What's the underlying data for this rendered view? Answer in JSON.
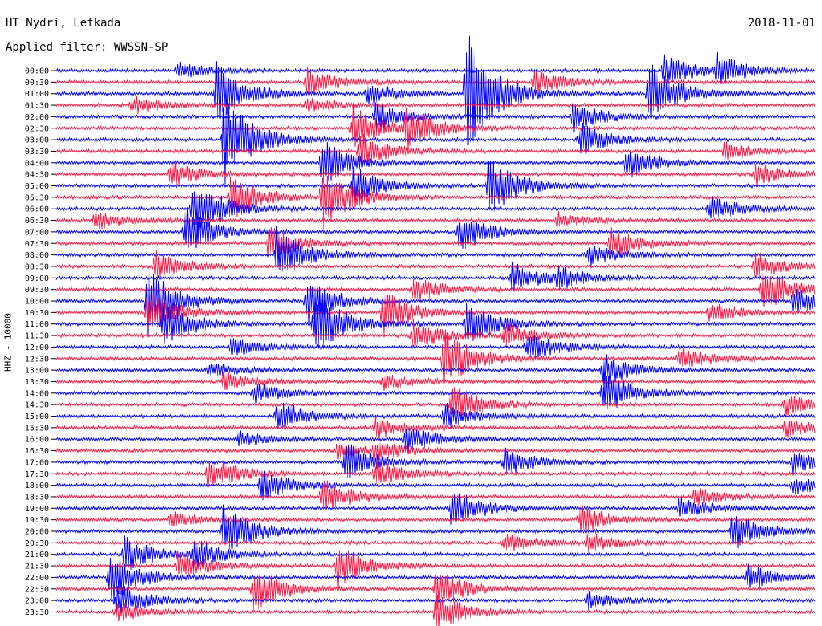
{
  "header": {
    "station": "HT Nydri, Lefkada",
    "filter": "Applied filter: WWSSN-SP",
    "date": "2018-11-01"
  },
  "channel_label": "HHZ - 10000",
  "colors": {
    "even": "#0000ff",
    "odd": "#ff1744",
    "text": "#000000"
  },
  "chart_data": {
    "type": "line",
    "title": "HT Nydri, Lefkada",
    "subtitle": "Applied filter: WWSSN-SP",
    "ylabel": "HHZ - 10000",
    "row_labels": [
      "00:00",
      "00:30",
      "01:00",
      "01:30",
      "02:00",
      "02:30",
      "03:00",
      "03:30",
      "04:00",
      "04:30",
      "05:00",
      "05:30",
      "06:00",
      "06:30",
      "07:00",
      "07:30",
      "08:00",
      "08:30",
      "09:00",
      "09:30",
      "10:00",
      "10:30",
      "11:00",
      "11:30",
      "12:00",
      "12:30",
      "13:00",
      "13:30",
      "14:00",
      "14:30",
      "15:00",
      "15:30",
      "16:00",
      "16:30",
      "17:00",
      "17:30",
      "18:00",
      "18:30",
      "19:00",
      "19:30",
      "20:00",
      "20:30",
      "21:00",
      "21:30",
      "22:00",
      "22:30",
      "23:00",
      "23:30"
    ],
    "events": [
      {
        "row": 0,
        "x": 0.16,
        "amp": 10
      },
      {
        "row": 0,
        "x": 0.8,
        "amp": 22
      },
      {
        "row": 0,
        "x": 0.87,
        "amp": 20
      },
      {
        "row": 1,
        "x": 0.33,
        "amp": 18
      },
      {
        "row": 1,
        "x": 0.63,
        "amp": 16
      },
      {
        "row": 2,
        "x": 0.21,
        "amp": 40
      },
      {
        "row": 2,
        "x": 0.41,
        "amp": 14
      },
      {
        "row": 2,
        "x": 0.54,
        "amp": 80
      },
      {
        "row": 2,
        "x": 0.78,
        "amp": 40
      },
      {
        "row": 3,
        "x": 0.1,
        "amp": 12
      },
      {
        "row": 3,
        "x": 0.33,
        "amp": 10
      },
      {
        "row": 4,
        "x": 0.42,
        "amp": 18
      },
      {
        "row": 4,
        "x": 0.68,
        "amp": 20
      },
      {
        "row": 5,
        "x": 0.39,
        "amp": 30
      },
      {
        "row": 5,
        "x": 0.46,
        "amp": 28
      },
      {
        "row": 6,
        "x": 0.22,
        "amp": 60
      },
      {
        "row": 6,
        "x": 0.69,
        "amp": 22
      },
      {
        "row": 7,
        "x": 0.4,
        "amp": 24
      },
      {
        "row": 7,
        "x": 0.88,
        "amp": 12
      },
      {
        "row": 8,
        "x": 0.35,
        "amp": 30
      },
      {
        "row": 8,
        "x": 0.75,
        "amp": 22
      },
      {
        "row": 9,
        "x": 0.15,
        "amp": 16
      },
      {
        "row": 9,
        "x": 0.92,
        "amp": 14
      },
      {
        "row": 10,
        "x": 0.39,
        "amp": 28
      },
      {
        "row": 10,
        "x": 0.57,
        "amp": 40
      },
      {
        "row": 11,
        "x": 0.23,
        "amp": 30
      },
      {
        "row": 11,
        "x": 0.35,
        "amp": 40
      },
      {
        "row": 12,
        "x": 0.18,
        "amp": 40
      },
      {
        "row": 12,
        "x": 0.86,
        "amp": 18
      },
      {
        "row": 13,
        "x": 0.05,
        "amp": 12
      },
      {
        "row": 13,
        "x": 0.66,
        "amp": 10
      },
      {
        "row": 14,
        "x": 0.17,
        "amp": 30
      },
      {
        "row": 14,
        "x": 0.53,
        "amp": 25
      },
      {
        "row": 15,
        "x": 0.28,
        "amp": 22
      },
      {
        "row": 15,
        "x": 0.73,
        "amp": 20
      },
      {
        "row": 16,
        "x": 0.29,
        "amp": 35
      },
      {
        "row": 16,
        "x": 0.7,
        "amp": 15
      },
      {
        "row": 17,
        "x": 0.13,
        "amp": 20
      },
      {
        "row": 17,
        "x": 0.92,
        "amp": 16
      },
      {
        "row": 18,
        "x": 0.6,
        "amp": 20
      },
      {
        "row": 18,
        "x": 0.66,
        "amp": 12
      },
      {
        "row": 19,
        "x": 0.47,
        "amp": 18
      },
      {
        "row": 19,
        "x": 0.93,
        "amp": 30
      },
      {
        "row": 20,
        "x": 0.12,
        "amp": 45
      },
      {
        "row": 20,
        "x": 0.33,
        "amp": 30
      },
      {
        "row": 20,
        "x": 0.97,
        "amp": 18
      },
      {
        "row": 21,
        "x": 0.12,
        "amp": 30
      },
      {
        "row": 21,
        "x": 0.43,
        "amp": 28
      },
      {
        "row": 21,
        "x": 0.86,
        "amp": 14
      },
      {
        "row": 22,
        "x": 0.14,
        "amp": 30
      },
      {
        "row": 22,
        "x": 0.34,
        "amp": 45
      },
      {
        "row": 22,
        "x": 0.54,
        "amp": 30
      },
      {
        "row": 23,
        "x": 0.47,
        "amp": 20
      },
      {
        "row": 23,
        "x": 0.59,
        "amp": 16
      },
      {
        "row": 24,
        "x": 0.23,
        "amp": 12
      },
      {
        "row": 24,
        "x": 0.62,
        "amp": 20
      },
      {
        "row": 25,
        "x": 0.51,
        "amp": 40
      },
      {
        "row": 25,
        "x": 0.82,
        "amp": 16
      },
      {
        "row": 26,
        "x": 0.2,
        "amp": 10
      },
      {
        "row": 26,
        "x": 0.72,
        "amp": 22
      },
      {
        "row": 27,
        "x": 0.22,
        "amp": 12
      },
      {
        "row": 27,
        "x": 0.43,
        "amp": 10
      },
      {
        "row": 28,
        "x": 0.26,
        "amp": 14
      },
      {
        "row": 28,
        "x": 0.72,
        "amp": 30
      },
      {
        "row": 29,
        "x": 0.52,
        "amp": 25
      },
      {
        "row": 29,
        "x": 0.96,
        "amp": 14
      },
      {
        "row": 30,
        "x": 0.29,
        "amp": 22
      },
      {
        "row": 30,
        "x": 0.51,
        "amp": 18
      },
      {
        "row": 31,
        "x": 0.42,
        "amp": 14
      },
      {
        "row": 31,
        "x": 0.96,
        "amp": 12
      },
      {
        "row": 32,
        "x": 0.24,
        "amp": 10
      },
      {
        "row": 32,
        "x": 0.46,
        "amp": 20
      },
      {
        "row": 33,
        "x": 0.42,
        "amp": 12
      },
      {
        "row": 33,
        "x": 0.37,
        "amp": 10
      },
      {
        "row": 34,
        "x": 0.38,
        "amp": 26
      },
      {
        "row": 34,
        "x": 0.59,
        "amp": 18
      },
      {
        "row": 34,
        "x": 0.97,
        "amp": 14
      },
      {
        "row": 35,
        "x": 0.2,
        "amp": 22
      },
      {
        "row": 35,
        "x": 0.42,
        "amp": 18
      },
      {
        "row": 36,
        "x": 0.27,
        "amp": 20
      },
      {
        "row": 36,
        "x": 0.97,
        "amp": 12
      },
      {
        "row": 37,
        "x": 0.35,
        "amp": 25
      },
      {
        "row": 37,
        "x": 0.84,
        "amp": 12
      },
      {
        "row": 38,
        "x": 0.52,
        "amp": 28
      },
      {
        "row": 38,
        "x": 0.82,
        "amp": 16
      },
      {
        "row": 39,
        "x": 0.69,
        "amp": 18
      },
      {
        "row": 39,
        "x": 0.15,
        "amp": 10
      },
      {
        "row": 40,
        "x": 0.22,
        "amp": 35
      },
      {
        "row": 40,
        "x": 0.89,
        "amp": 24
      },
      {
        "row": 41,
        "x": 0.7,
        "amp": 12
      },
      {
        "row": 41,
        "x": 0.59,
        "amp": 14
      },
      {
        "row": 42,
        "x": 0.09,
        "amp": 24
      },
      {
        "row": 42,
        "x": 0.18,
        "amp": 20
      },
      {
        "row": 43,
        "x": 0.16,
        "amp": 20
      },
      {
        "row": 43,
        "x": 0.37,
        "amp": 28
      },
      {
        "row": 44,
        "x": 0.07,
        "amp": 34
      },
      {
        "row": 44,
        "x": 0.91,
        "amp": 18
      },
      {
        "row": 45,
        "x": 0.26,
        "amp": 30
      },
      {
        "row": 45,
        "x": 0.5,
        "amp": 25
      },
      {
        "row": 46,
        "x": 0.08,
        "amp": 22
      },
      {
        "row": 46,
        "x": 0.7,
        "amp": 12
      },
      {
        "row": 47,
        "x": 0.08,
        "amp": 14
      },
      {
        "row": 47,
        "x": 0.5,
        "amp": 24
      }
    ]
  }
}
